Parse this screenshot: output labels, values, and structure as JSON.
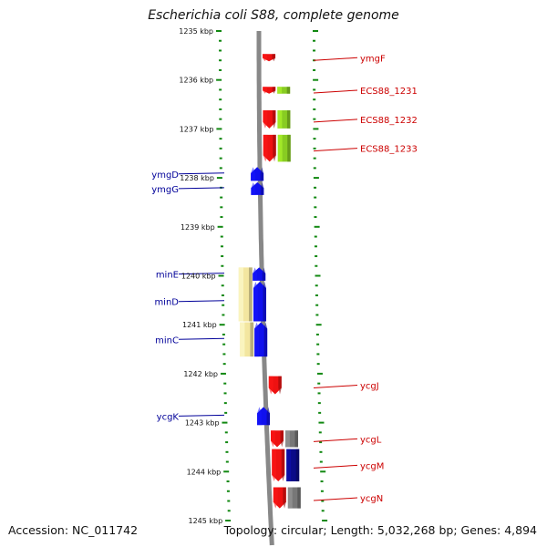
{
  "title": "Escherichia coli S88, complete genome",
  "accession": "Accession: NC_011742",
  "topology": "Topology: circular; Length: 5,032,268 bp; Genes: 4,894",
  "colors": {
    "red": "#ee1111",
    "blue": "#1010ee",
    "green": "#88cc22",
    "yellow": "#f3e6a0",
    "gray": "#777777",
    "navy": "#0a0a88",
    "tick": "#118811",
    "backbone": "#888888",
    "red_label": "#cc0000",
    "blue_label": "#000099"
  },
  "scale": {
    "labels": [
      "1235 kbp",
      "1236 kbp",
      "1237 kbp",
      "1238 kbp",
      "1239 kbp",
      "1240 kbp",
      "1241 kbp",
      "1242 kbp",
      "1243 kbp",
      "1244 kbp",
      "1245 kbp"
    ],
    "start": 1235,
    "end": 1245
  },
  "genes": [
    {
      "name": "ymgF",
      "side": "right",
      "color": "red",
      "strand": "+",
      "start": 1235.47,
      "end": 1235.62
    },
    {
      "name": "ECS88_1231",
      "side": "right",
      "color": "red",
      "strand": "+",
      "start": 1236.14,
      "end": 1236.28
    },
    {
      "name": "ECS88_1232",
      "side": "right",
      "color": "red",
      "strand": "+",
      "start": 1236.62,
      "end": 1236.99
    },
    {
      "name": "ECS88_1233",
      "side": "right",
      "color": "red",
      "strand": "+",
      "start": 1237.12,
      "end": 1237.67
    },
    {
      "name": "ymgD",
      "side": "left",
      "color": "blue",
      "strand": "-",
      "start": 1237.78,
      "end": 1238.06
    },
    {
      "name": "ymgG",
      "side": "left",
      "color": "blue",
      "strand": "-",
      "start": 1238.09,
      "end": 1238.35
    },
    {
      "name": "minE",
      "side": "left",
      "color": "blue",
      "strand": "-",
      "start": 1239.83,
      "end": 1240.1
    },
    {
      "name": "minD",
      "side": "left",
      "color": "blue",
      "strand": "-",
      "start": 1240.12,
      "end": 1240.93
    },
    {
      "name": "minC",
      "side": "left",
      "color": "blue",
      "strand": "-",
      "start": 1240.95,
      "end": 1241.65
    },
    {
      "name": "ycgJ",
      "side": "right",
      "color": "red",
      "strand": "+",
      "start": 1242.05,
      "end": 1242.42
    },
    {
      "name": "ycgK",
      "side": "left",
      "color": "blue",
      "strand": "-",
      "start": 1242.68,
      "end": 1243.05
    },
    {
      "name": "ycgL",
      "side": "right",
      "color": "red",
      "strand": "+",
      "start": 1243.16,
      "end": 1243.5
    },
    {
      "name": "ycgM",
      "side": "right",
      "color": "red",
      "strand": "+",
      "start": 1243.54,
      "end": 1244.2
    },
    {
      "name": "ycgN",
      "side": "right",
      "color": "red",
      "strand": "+",
      "start": 1244.32,
      "end": 1244.75
    }
  ],
  "features": [
    {
      "color": "green",
      "start": 1236.14,
      "end": 1236.28
    },
    {
      "color": "green",
      "start": 1236.62,
      "end": 1236.99
    },
    {
      "color": "green",
      "start": 1237.12,
      "end": 1237.67
    },
    {
      "color": "yellow",
      "start": 1239.83,
      "end": 1240.93
    },
    {
      "color": "yellow",
      "start": 1240.95,
      "end": 1241.65
    },
    {
      "color": "gray",
      "start": 1243.16,
      "end": 1243.5
    },
    {
      "color": "navy",
      "start": 1243.54,
      "end": 1244.2
    },
    {
      "color": "gray",
      "start": 1244.32,
      "end": 1244.75
    }
  ]
}
